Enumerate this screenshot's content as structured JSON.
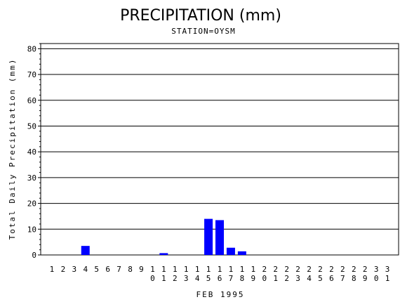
{
  "chart_data": {
    "type": "bar",
    "title": "PRECIPITATION (mm)",
    "subtitle": "STATION=OYSM",
    "xlabel": "FEB 1995",
    "ylabel": "Total Daily Precipitation (mm)",
    "ylim": [
      0,
      82
    ],
    "yticks": [
      0,
      10,
      20,
      30,
      40,
      50,
      60,
      70,
      80
    ],
    "grid": true,
    "bar_color": "#0000ff",
    "categories": [
      "1",
      "2",
      "3",
      "4",
      "5",
      "6",
      "7",
      "8",
      "9",
      "10",
      "11",
      "12",
      "13",
      "14",
      "15",
      "16",
      "17",
      "18",
      "19",
      "20",
      "21",
      "22",
      "23",
      "24",
      "25",
      "26",
      "27",
      "28",
      "29",
      "30",
      "31"
    ],
    "values": [
      0,
      0,
      0,
      3.5,
      0,
      0,
      0,
      0,
      0,
      0,
      0.7,
      0,
      0,
      0,
      14.0,
      13.5,
      2.8,
      1.4,
      0,
      0,
      0,
      0,
      0,
      0,
      0,
      0,
      0,
      0,
      0,
      0,
      0
    ]
  }
}
